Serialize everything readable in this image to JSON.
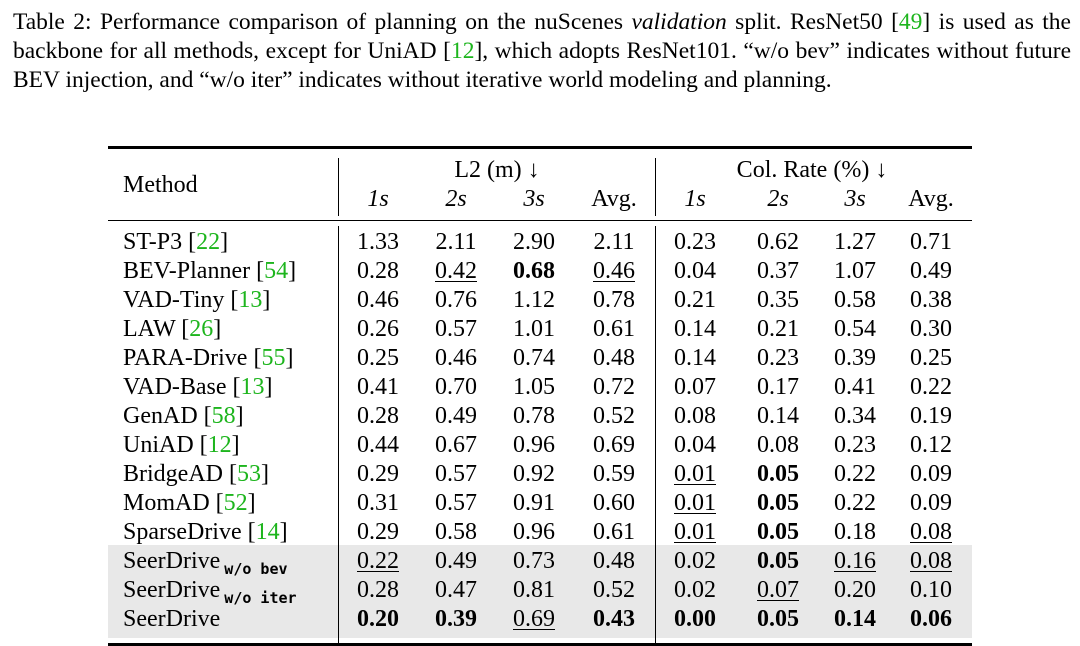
{
  "caption": {
    "label": "Table 2:",
    "p1": " Performance comparison of planning on the nuScenes ",
    "italic": "validation",
    "p2": " split. ResNet50 [",
    "ref1": "49",
    "p3": "] is used as the backbone for all methods, except for UniAD [",
    "ref2": "12",
    "p4": "], which adopts ResNet101. “w/o bev” indicates without future BEV injection, and “w/o iter” indicates without iterative world modeling and planning."
  },
  "header": {
    "method": "Method",
    "l2_group": "L2 (m) ↓",
    "col_group": "Col. Rate (%) ↓",
    "cols": [
      "1s",
      "2s",
      "3s",
      "Avg.",
      "1s",
      "2s",
      "3s",
      "Avg."
    ]
  },
  "rows": [
    {
      "name": "ST-P3 [",
      "ref": "22",
      "tail": "]",
      "sub": "",
      "values": [
        "1.33",
        "2.11",
        "2.90",
        "2.11",
        "0.23",
        "0.62",
        "1.27",
        "0.71"
      ],
      "bold": [],
      "underline": [],
      "shaded": false
    },
    {
      "name": "BEV-Planner [",
      "ref": "54",
      "tail": "]",
      "sub": "",
      "values": [
        "0.28",
        "0.42",
        "0.68",
        "0.46",
        "0.04",
        "0.37",
        "1.07",
        "0.49"
      ],
      "bold": [
        2
      ],
      "underline": [
        1,
        3
      ],
      "shaded": false
    },
    {
      "name": "VAD-Tiny [",
      "ref": "13",
      "tail": "]",
      "sub": "",
      "values": [
        "0.46",
        "0.76",
        "1.12",
        "0.78",
        "0.21",
        "0.35",
        "0.58",
        "0.38"
      ],
      "bold": [],
      "underline": [],
      "shaded": false
    },
    {
      "name": "LAW [",
      "ref": "26",
      "tail": "]",
      "sub": "",
      "values": [
        "0.26",
        "0.57",
        "1.01",
        "0.61",
        "0.14",
        "0.21",
        "0.54",
        "0.30"
      ],
      "bold": [],
      "underline": [],
      "shaded": false
    },
    {
      "name": "PARA-Drive [",
      "ref": "55",
      "tail": "]",
      "sub": "",
      "values": [
        "0.25",
        "0.46",
        "0.74",
        "0.48",
        "0.14",
        "0.23",
        "0.39",
        "0.25"
      ],
      "bold": [],
      "underline": [],
      "shaded": false
    },
    {
      "name": "VAD-Base [",
      "ref": "13",
      "tail": "]",
      "sub": "",
      "values": [
        "0.41",
        "0.70",
        "1.05",
        "0.72",
        "0.07",
        "0.17",
        "0.41",
        "0.22"
      ],
      "bold": [],
      "underline": [],
      "shaded": false
    },
    {
      "name": "GenAD [",
      "ref": "58",
      "tail": "]",
      "sub": "",
      "values": [
        "0.28",
        "0.49",
        "0.78",
        "0.52",
        "0.08",
        "0.14",
        "0.34",
        "0.19"
      ],
      "bold": [],
      "underline": [],
      "shaded": false
    },
    {
      "name": "UniAD [",
      "ref": "12",
      "tail": "]",
      "sub": "",
      "values": [
        "0.44",
        "0.67",
        "0.96",
        "0.69",
        "0.04",
        "0.08",
        "0.23",
        "0.12"
      ],
      "bold": [],
      "underline": [],
      "shaded": false
    },
    {
      "name": "BridgeAD [",
      "ref": "53",
      "tail": "]",
      "sub": "",
      "values": [
        "0.29",
        "0.57",
        "0.92",
        "0.59",
        "0.01",
        "0.05",
        "0.22",
        "0.09"
      ],
      "bold": [
        5
      ],
      "underline": [
        4
      ],
      "shaded": false
    },
    {
      "name": "MomAD [",
      "ref": "52",
      "tail": "]",
      "sub": "",
      "values": [
        "0.31",
        "0.57",
        "0.91",
        "0.60",
        "0.01",
        "0.05",
        "0.22",
        "0.09"
      ],
      "bold": [
        5
      ],
      "underline": [
        4
      ],
      "shaded": false
    },
    {
      "name": "SparseDrive [",
      "ref": "14",
      "tail": "]",
      "sub": "",
      "values": [
        "0.29",
        "0.58",
        "0.96",
        "0.61",
        "0.01",
        "0.05",
        "0.18",
        "0.08"
      ],
      "bold": [
        5
      ],
      "underline": [
        4,
        7
      ],
      "shaded": false
    },
    {
      "name": "SeerDrive",
      "ref": "",
      "tail": "",
      "sub": "w/o bev",
      "values": [
        "0.22",
        "0.49",
        "0.73",
        "0.48",
        "0.02",
        "0.05",
        "0.16",
        "0.08"
      ],
      "bold": [
        5
      ],
      "underline": [
        0,
        6,
        7
      ],
      "shaded": true
    },
    {
      "name": "SeerDrive",
      "ref": "",
      "tail": "",
      "sub": "w/o iter",
      "values": [
        "0.28",
        "0.47",
        "0.81",
        "0.52",
        "0.02",
        "0.07",
        "0.20",
        "0.10"
      ],
      "bold": [],
      "underline": [
        5
      ],
      "shaded": true
    },
    {
      "name": "SeerDrive",
      "ref": "",
      "tail": "",
      "sub": "",
      "values": [
        "0.20",
        "0.39",
        "0.69",
        "0.43",
        "0.00",
        "0.05",
        "0.14",
        "0.06"
      ],
      "bold": [
        0,
        1,
        3,
        4,
        5,
        6,
        7
      ],
      "underline": [
        2
      ],
      "shaded": true
    }
  ]
}
